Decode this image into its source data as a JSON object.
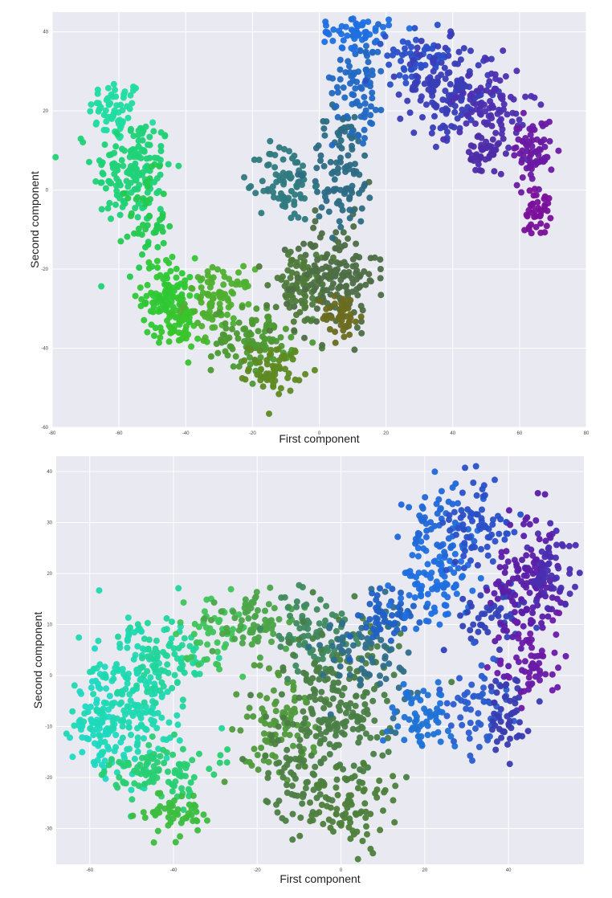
{
  "chart_data": [
    {
      "type": "scatter",
      "title": "",
      "xlabel": "First  component",
      "ylabel": "Second  component",
      "xlim": [
        -80,
        80
      ],
      "ylim": [
        -60,
        45
      ],
      "xticks": [
        -80,
        -60,
        -40,
        -20,
        0,
        20,
        40,
        60,
        80
      ],
      "yticks": [
        -60,
        -40,
        -20,
        0,
        20,
        40
      ],
      "grid": true,
      "background": "#e9e9f2",
      "colors": {
        "green": "#1fd13a",
        "cyan": "#18e3a6",
        "blue": "#1f6fe0",
        "purple": "#7a109a",
        "olive": "#6a6b1e"
      },
      "clusters": [
        {
          "x": -61,
          "y": 20,
          "sx": 4,
          "sy": 4,
          "n": 60,
          "color": "#20dca0"
        },
        {
          "x": -56,
          "y": 5,
          "sx": 6,
          "sy": 7,
          "n": 150,
          "color": "#1fd277"
        },
        {
          "x": -52,
          "y": -8,
          "sx": 3,
          "sy": 6,
          "n": 50,
          "color": "#24c94e"
        },
        {
          "x": -45,
          "y": -27,
          "sx": 4,
          "sy": 5,
          "n": 110,
          "color": "#2fc834"
        },
        {
          "x": -42,
          "y": -35,
          "sx": 3,
          "sy": 3,
          "n": 40,
          "color": "#38c52a"
        },
        {
          "x": -30,
          "y": -28,
          "sx": 5,
          "sy": 4,
          "n": 90,
          "color": "#4fb02f"
        },
        {
          "x": -20,
          "y": -38,
          "sx": 6,
          "sy": 4,
          "n": 100,
          "color": "#4d9a33"
        },
        {
          "x": -13,
          "y": -45,
          "sx": 4,
          "sy": 3,
          "n": 60,
          "color": "#5e8a22"
        },
        {
          "x": -6,
          "y": -25,
          "sx": 5,
          "sy": 5,
          "n": 90,
          "color": "#4f7a3a"
        },
        {
          "x": 5,
          "y": -22,
          "sx": 6,
          "sy": 7,
          "n": 150,
          "color": "#4d6e45"
        },
        {
          "x": 7,
          "y": -32,
          "sx": 3,
          "sy": 3,
          "n": 40,
          "color": "#6a6b1e"
        },
        {
          "x": -10,
          "y": 2,
          "sx": 4,
          "sy": 5,
          "n": 80,
          "color": "#2f7a80"
        },
        {
          "x": 7,
          "y": 5,
          "sx": 5,
          "sy": 8,
          "n": 100,
          "color": "#2c6c84"
        },
        {
          "x": 12,
          "y": 28,
          "sx": 4,
          "sy": 7,
          "n": 80,
          "color": "#2168c4"
        },
        {
          "x": 11,
          "y": 40,
          "sx": 5,
          "sy": 2,
          "n": 50,
          "color": "#1f6fe0"
        },
        {
          "x": 30,
          "y": 34,
          "sx": 5,
          "sy": 3,
          "n": 60,
          "color": "#2a4fc8"
        },
        {
          "x": 38,
          "y": 25,
          "sx": 7,
          "sy": 6,
          "n": 150,
          "color": "#3a3db7"
        },
        {
          "x": 52,
          "y": 22,
          "sx": 5,
          "sy": 5,
          "n": 80,
          "color": "#4d2fb0"
        },
        {
          "x": 50,
          "y": 9,
          "sx": 3,
          "sy": 3,
          "n": 50,
          "color": "#4e2ca8"
        },
        {
          "x": 64,
          "y": 10,
          "sx": 3,
          "sy": 4,
          "n": 70,
          "color": "#6a1aa2"
        },
        {
          "x": 65,
          "y": -5,
          "sx": 2,
          "sy": 3,
          "n": 40,
          "color": "#7a109a"
        }
      ]
    },
    {
      "type": "scatter",
      "title": "",
      "xlabel": "First  component",
      "ylabel": "Second  component",
      "xlim": [
        -68,
        58
      ],
      "ylim": [
        -37,
        43
      ],
      "xticks": [
        -60,
        -40,
        -20,
        0,
        20,
        40
      ],
      "yticks": [
        -30,
        -20,
        -10,
        0,
        10,
        20,
        30,
        40
      ],
      "grid": true,
      "background": "#e9e9f2",
      "colors": {
        "green": "#2fcc4a",
        "cyan": "#1be0c0",
        "blue": "#1f72e0",
        "purple": "#6a1aa6",
        "olive": "#4f7f36"
      },
      "clusters": [
        {
          "x": -58,
          "y": -10,
          "sx": 3,
          "sy": 5,
          "n": 90,
          "color": "#1fd9c1"
        },
        {
          "x": -50,
          "y": -5,
          "sx": 6,
          "sy": 7,
          "n": 190,
          "color": "#1fd9b0"
        },
        {
          "x": -42,
          "y": 3,
          "sx": 5,
          "sy": 4,
          "n": 80,
          "color": "#22d59a"
        },
        {
          "x": -43,
          "y": -19,
          "sx": 6,
          "sy": 3,
          "n": 100,
          "color": "#28cf72"
        },
        {
          "x": -39,
          "y": -27,
          "sx": 4,
          "sy": 2,
          "n": 50,
          "color": "#3bbd3e"
        },
        {
          "x": -30,
          "y": 8,
          "sx": 4,
          "sy": 4,
          "n": 50,
          "color": "#3ec45a"
        },
        {
          "x": -20,
          "y": 11,
          "sx": 5,
          "sy": 3,
          "n": 70,
          "color": "#4ba548"
        },
        {
          "x": -15,
          "y": -10,
          "sx": 5,
          "sy": 5,
          "n": 90,
          "color": "#4f9a3a"
        },
        {
          "x": -10,
          "y": -20,
          "sx": 4,
          "sy": 6,
          "n": 70,
          "color": "#4d7f43"
        },
        {
          "x": -8,
          "y": 8,
          "sx": 5,
          "sy": 4,
          "n": 80,
          "color": "#3f8a60"
        },
        {
          "x": 0,
          "y": -5,
          "sx": 7,
          "sy": 8,
          "n": 210,
          "color": "#4a7e45"
        },
        {
          "x": 2,
          "y": -25,
          "sx": 5,
          "sy": 4,
          "n": 80,
          "color": "#4d7f3a"
        },
        {
          "x": 7,
          "y": 5,
          "sx": 5,
          "sy": 5,
          "n": 80,
          "color": "#2f6f8a"
        },
        {
          "x": 10,
          "y": 12,
          "sx": 4,
          "sy": 3,
          "n": 50,
          "color": "#2060c4"
        },
        {
          "x": 18,
          "y": -8,
          "sx": 4,
          "sy": 4,
          "n": 60,
          "color": "#1f72d6"
        },
        {
          "x": 22,
          "y": 18,
          "sx": 5,
          "sy": 4,
          "n": 90,
          "color": "#1f6fe0"
        },
        {
          "x": 24,
          "y": 30,
          "sx": 4,
          "sy": 4,
          "n": 60,
          "color": "#2167d8"
        },
        {
          "x": 33,
          "y": 30,
          "sx": 4,
          "sy": 5,
          "n": 70,
          "color": "#2a50c8"
        },
        {
          "x": 35,
          "y": 12,
          "sx": 4,
          "sy": 5,
          "n": 50,
          "color": "#3142b8"
        },
        {
          "x": 32,
          "y": -5,
          "sx": 4,
          "sy": 5,
          "n": 60,
          "color": "#2b5dcf"
        },
        {
          "x": 40,
          "y": -7,
          "sx": 3,
          "sy": 4,
          "n": 50,
          "color": "#3a3bb0"
        },
        {
          "x": 45,
          "y": 18,
          "sx": 4,
          "sy": 7,
          "n": 140,
          "color": "#5b1ea8"
        },
        {
          "x": 45,
          "y": 3,
          "sx": 4,
          "sy": 4,
          "n": 60,
          "color": "#6a1aa6"
        },
        {
          "x": 50,
          "y": 20,
          "sx": 3,
          "sy": 5,
          "n": 50,
          "color": "#4a2eb0"
        }
      ]
    }
  ]
}
